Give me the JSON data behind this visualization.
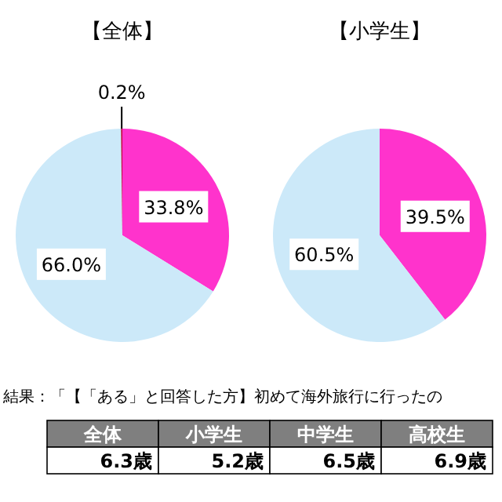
{
  "chart_data": [
    {
      "type": "pie",
      "title": "【全体】",
      "categories": [
        null,
        null,
        null
      ],
      "values": [
        33.8,
        66.0,
        0.2
      ],
      "value_labels": [
        "33.8%",
        "66.0%",
        "0.2%"
      ],
      "colors": [
        "#ff33cc",
        "#cce9f9",
        "#c0003c"
      ]
    },
    {
      "type": "pie",
      "title": "【小学生】",
      "categories": [
        null,
        null
      ],
      "values": [
        39.5,
        60.5
      ],
      "value_labels": [
        "39.5%",
        "60.5%"
      ],
      "colors": [
        "#ff33cc",
        "#cce9f9"
      ]
    },
    {
      "type": "other",
      "title": "結果：「【「ある」と回答した方】初めて海外旅行に行ったの",
      "categories": [
        "全体",
        "小学生",
        "中学生",
        "高校生"
      ],
      "value_labels": [
        "6.3歳",
        "5.2歳",
        "6.5歳",
        "6.9歳"
      ]
    }
  ]
}
